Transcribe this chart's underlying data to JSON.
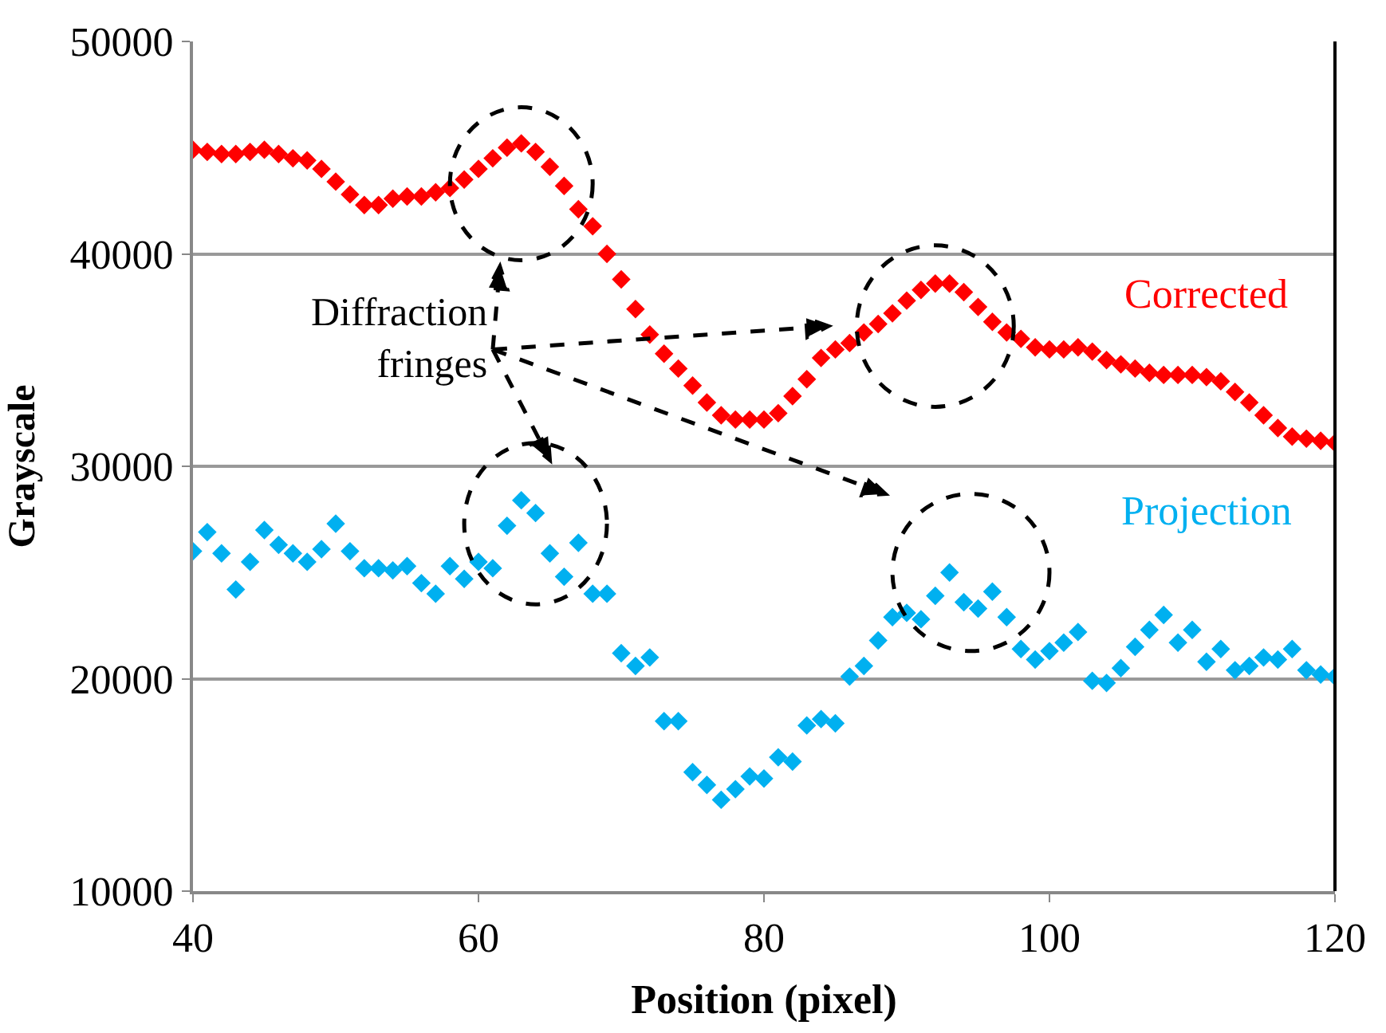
{
  "chart_data": {
    "type": "scatter",
    "xlabel": "Position (pixel)",
    "ylabel": "Grayscale",
    "x": [
      40,
      41,
      42,
      43,
      44,
      45,
      46,
      47,
      48,
      49,
      50,
      51,
      52,
      53,
      54,
      55,
      56,
      57,
      58,
      59,
      60,
      61,
      62,
      63,
      64,
      65,
      66,
      67,
      68,
      69,
      70,
      71,
      72,
      73,
      74,
      75,
      76,
      77,
      78,
      79,
      80,
      81,
      82,
      83,
      84,
      85,
      86,
      87,
      88,
      89,
      90,
      91,
      92,
      93,
      94,
      95,
      96,
      97,
      98,
      99,
      100,
      101,
      102,
      103,
      104,
      105,
      106,
      107,
      108,
      109,
      110,
      111,
      112,
      113,
      114,
      115,
      116,
      117,
      118,
      119,
      120
    ],
    "series": [
      {
        "name": "Corrected",
        "color": "#ff0000",
        "values": [
          44900,
          44800,
          44700,
          44700,
          44800,
          44900,
          44700,
          44500,
          44400,
          44000,
          43400,
          42800,
          42300,
          42300,
          42600,
          42700,
          42700,
          42900,
          43100,
          43500,
          44000,
          44500,
          45000,
          45200,
          44800,
          44100,
          43200,
          42100,
          41300,
          40000,
          38800,
          37400,
          36200,
          35300,
          34600,
          33800,
          33000,
          32400,
          32200,
          32200,
          32200,
          32500,
          33300,
          34100,
          35100,
          35500,
          35800,
          36300,
          36700,
          37200,
          37800,
          38300,
          38600,
          38600,
          38200,
          37500,
          36800,
          36300,
          36000,
          35600,
          35500,
          35500,
          35600,
          35400,
          35000,
          34800,
          34600,
          34400,
          34300,
          34300,
          34300,
          34200,
          34000,
          33500,
          33000,
          32400,
          31800,
          31400,
          31300,
          31200,
          31100
        ]
      },
      {
        "name": "Projection",
        "color": "#00b0f0",
        "values": [
          26000,
          26900,
          25900,
          24200,
          25500,
          27000,
          26300,
          25900,
          25500,
          26100,
          27300,
          26000,
          25200,
          25200,
          25100,
          25300,
          24500,
          24000,
          25300,
          24700,
          25500,
          25200,
          27200,
          28400,
          27800,
          25900,
          24800,
          26400,
          24000,
          24000,
          21200,
          20600,
          21000,
          18000,
          18000,
          15600,
          15000,
          14300,
          14800,
          15400,
          15300,
          16300,
          16100,
          17800,
          18100,
          17900,
          20100,
          20600,
          21800,
          22900,
          23100,
          22800,
          23900,
          25000,
          23600,
          23300,
          24100,
          22900,
          21400,
          20900,
          21300,
          21700,
          22200,
          19900,
          19800,
          20500,
          21500,
          22300,
          23000,
          21700,
          22300,
          20800,
          21400,
          20400,
          20600,
          21000,
          20900,
          21400,
          20400,
          20200,
          20100
        ]
      }
    ],
    "xlim": [
      40,
      120
    ],
    "xticks": [
      40,
      60,
      80,
      100,
      120
    ],
    "ylim": [
      10000,
      50000
    ],
    "yticks": [
      10000,
      20000,
      30000,
      40000,
      50000
    ],
    "grid": "y",
    "legend": false,
    "marker": "diamond",
    "annotations": [
      "Diffraction fringes"
    ]
  }
}
